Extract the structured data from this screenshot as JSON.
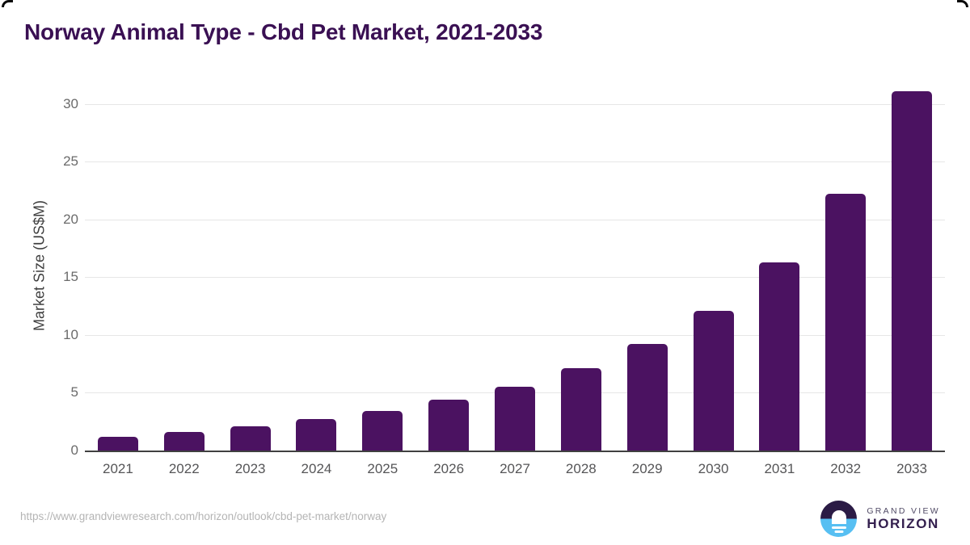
{
  "header": {
    "title": "Norway Animal Type - Cbd Pet Market, 2021-2033"
  },
  "chart_data": {
    "type": "bar",
    "title": "Norway Animal Type - Cbd Pet Market, 2021-2033",
    "categories": [
      "2021",
      "2022",
      "2023",
      "2024",
      "2025",
      "2026",
      "2027",
      "2028",
      "2029",
      "2030",
      "2031",
      "2032",
      "2033"
    ],
    "values": [
      1.2,
      1.6,
      2.1,
      2.7,
      3.4,
      4.4,
      5.5,
      7.1,
      9.2,
      12.1,
      16.3,
      22.2,
      31.1
    ],
    "xlabel": "",
    "ylabel": "Market Size (US$M)",
    "ylim": [
      0,
      32
    ],
    "yticks": [
      0,
      5,
      10,
      15,
      20,
      25,
      30
    ],
    "grid": "horizontal",
    "legend_position": "none",
    "bar_color": "#4b1261"
  },
  "footer": {
    "source_url": "https://www.grandviewresearch.com/horizon/outlook/cbd-pet-market/norway",
    "logo": {
      "line1": "GRAND VIEW",
      "line2": "HORIZON"
    }
  },
  "colors": {
    "title_text": "#3a1053",
    "bar": "#4b1261",
    "gridline": "#e6e6e6",
    "axis_line": "#404040",
    "tick_text": "#555557",
    "url_text": "#b4b4b4",
    "logo_dark": "#2b1b45",
    "logo_blue": "#57bff2"
  }
}
